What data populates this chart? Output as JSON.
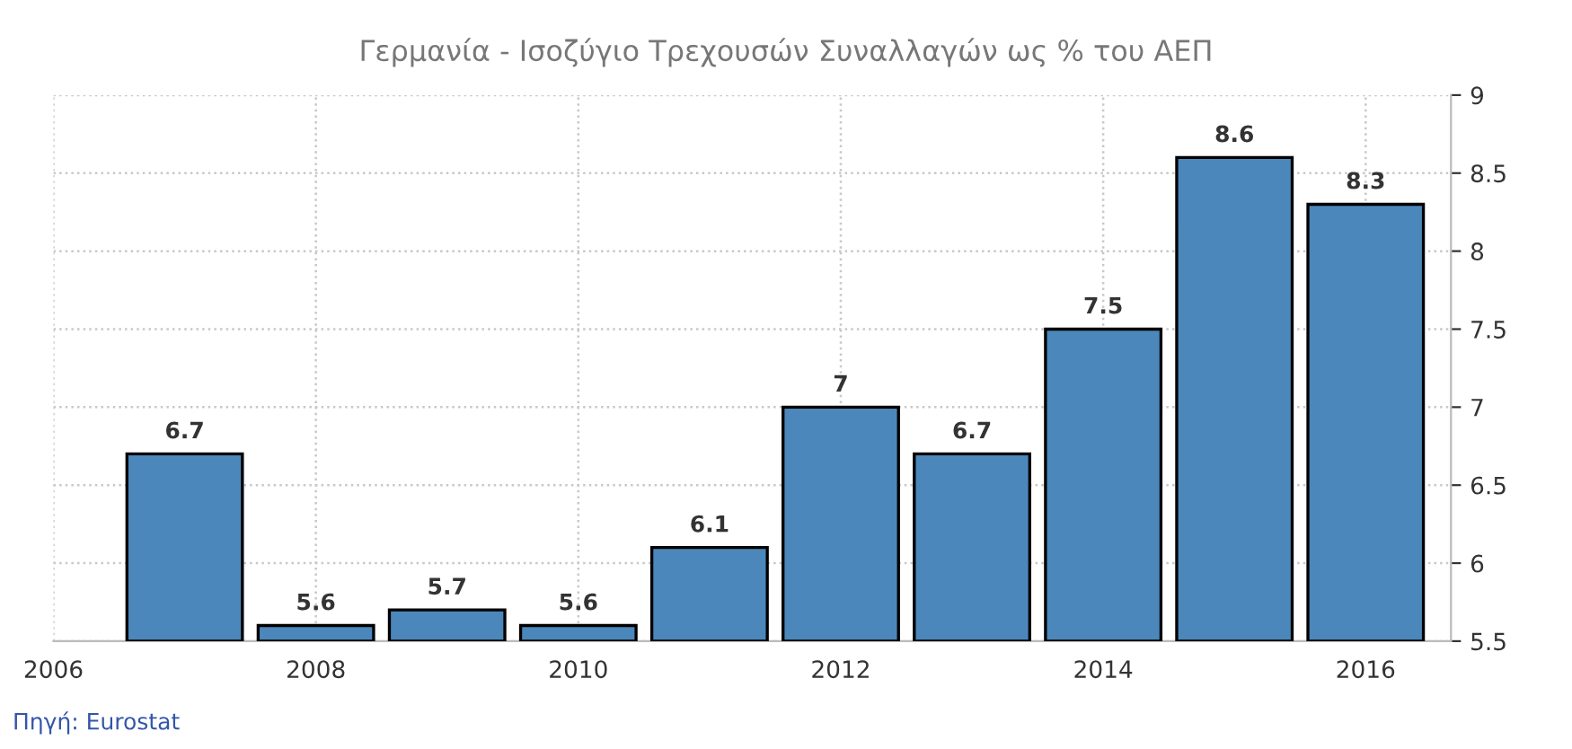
{
  "chart_data": {
    "type": "bar",
    "title": "Γερμανία - Ισοζύγιο Τρεχουσών Συναλλαγών ως % του ΑΕΠ",
    "x": [
      2007,
      2008,
      2009,
      2010,
      2011,
      2012,
      2013,
      2014,
      2015,
      2016
    ],
    "values": [
      6.7,
      5.6,
      5.7,
      5.6,
      6.1,
      7,
      6.7,
      7.5,
      8.6,
      8.3
    ],
    "color": "#4b87ba",
    "xlim": [
      2006,
      2016.65
    ],
    "xticks": [
      2006,
      2008,
      2010,
      2012,
      2014,
      2016
    ],
    "ylim": [
      5.5,
      9
    ],
    "yticks": [
      5.5,
      6,
      6.5,
      7,
      7.5,
      8,
      8.5,
      9
    ],
    "grid": true,
    "data_labels": true,
    "annotations": [
      "Πηγή: Eurostat"
    ]
  }
}
